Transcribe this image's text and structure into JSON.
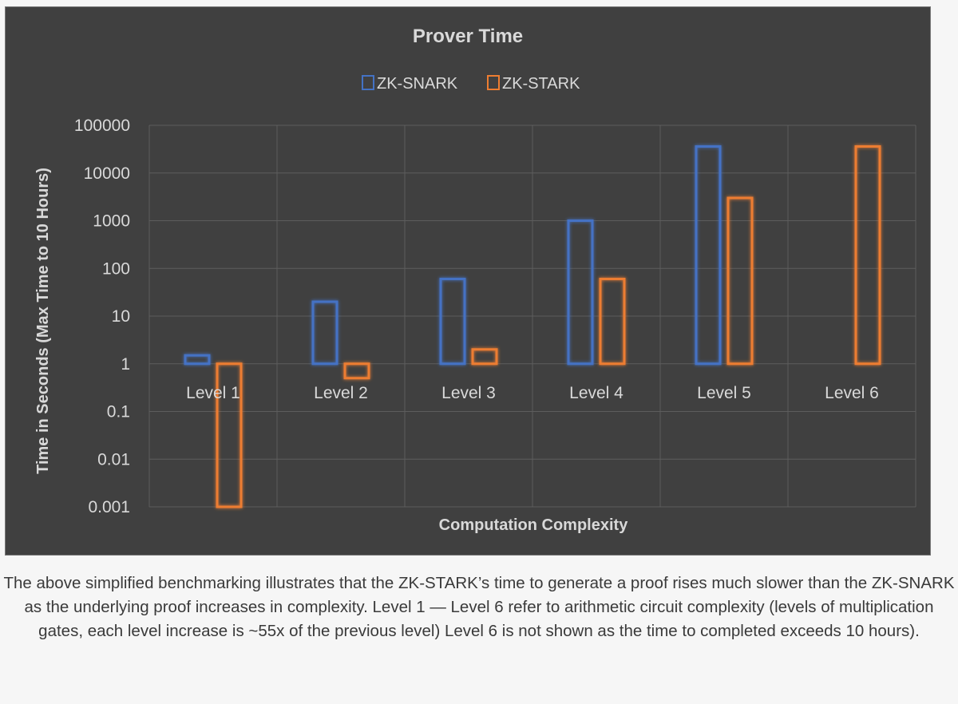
{
  "chart_data": {
    "type": "bar",
    "title": "Prover Time",
    "xlabel": "Computation Complexity",
    "ylabel": "Time in Seconds (Max  Time to 10 Hours)",
    "yscale": "log",
    "ylim": [
      0.001,
      100000
    ],
    "yticks": [
      "100000",
      "10000",
      "1000",
      "100",
      "10",
      "1",
      "0.1",
      "0.01",
      "0.001"
    ],
    "ytick_values": [
      100000,
      10000,
      1000,
      100,
      10,
      1,
      0.1,
      0.01,
      0.001
    ],
    "baseline": 1,
    "categories": [
      "Level 1",
      "Level 2",
      "Level 3",
      "Level 4",
      "Level 5",
      "Level 6"
    ],
    "series": [
      {
        "name": "ZK-SNARK",
        "color": "#4472c4",
        "values": [
          1.5,
          20,
          60,
          1000,
          36000,
          null
        ]
      },
      {
        "name": "ZK-STARK",
        "color": "#ed7d31",
        "values": [
          0.001,
          0.5,
          2,
          60,
          3000,
          36000
        ]
      }
    ],
    "grid": true,
    "legend_position": "top-center"
  },
  "caption": "The above simplified benchmarking illustrates that the ZK-STARK’s time to generate a proof rises much slower than the ZK-SNARK as the underlying proof increases in complexity. Level 1 — Level 6 refer to arithmetic circuit complexity (levels of multiplication gates, each level increase is ~55x of the previous level) Level 6 is not shown as the time to completed exceeds 10 hours)."
}
